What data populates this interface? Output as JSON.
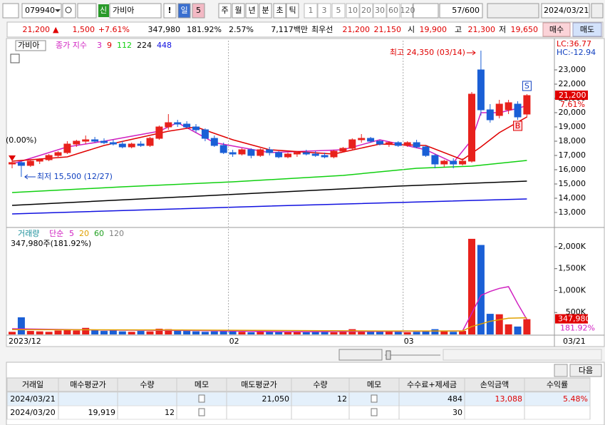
{
  "toolbar": {
    "code": "079940",
    "name_tag": "신",
    "name": "가비아",
    "alert": "!",
    "periods": [
      "일",
      "5",
      "주",
      "월",
      "년",
      "분",
      "초",
      "틱"
    ],
    "intervals": [
      "1",
      "3",
      "5",
      "10",
      "20",
      "30",
      "60",
      "120"
    ],
    "count": "57/600",
    "date": "2024/03/21"
  },
  "quote": {
    "price": "21,200",
    "arrow": "▲",
    "change": "1,500",
    "change_rate": "+7.61%",
    "volume": "347,980",
    "volume_ratio": "181.92%",
    "turnover": "2.57%",
    "amount": "7,117백만",
    "best_label": "최우선",
    "ask": "21,200",
    "bid": "21,150",
    "open_label": "시",
    "open": "19,900",
    "high_label": "고",
    "high": "21,300",
    "low_label": "저",
    "low": "19,650",
    "buy": "매수",
    "sell": "매도"
  },
  "chart_data": [
    {
      "type": "candlestick",
      "title": "가비아",
      "indicator_label": "종가 지수",
      "up_color": "#e8211c",
      "down_color": "#1a5fd6",
      "candles": [
        [
          16400,
          16700,
          16100,
          16500
        ],
        [
          16500,
          16600,
          15500,
          16300
        ],
        [
          16300,
          16700,
          16200,
          16600
        ],
        [
          16600,
          16800,
          16400,
          16700
        ],
        [
          16700,
          17100,
          16600,
          17000
        ],
        [
          17000,
          17300,
          16900,
          17200
        ],
        [
          17200,
          18000,
          17100,
          17800
        ],
        [
          17800,
          18100,
          17600,
          18000
        ],
        [
          18000,
          18400,
          17800,
          18100
        ],
        [
          18100,
          18300,
          17900,
          18000
        ],
        [
          18000,
          18200,
          17800,
          17900
        ],
        [
          17900,
          18100,
          17700,
          17800
        ],
        [
          17800,
          18000,
          17500,
          17600
        ],
        [
          17600,
          17900,
          17500,
          17800
        ],
        [
          17800,
          18000,
          17600,
          17700
        ],
        [
          17700,
          18300,
          17600,
          18200
        ],
        [
          18200,
          19100,
          18100,
          19000
        ],
        [
          19000,
          19900,
          18800,
          19300
        ],
        [
          19300,
          19500,
          19000,
          19200
        ],
        [
          19200,
          19400,
          18900,
          19000
        ],
        [
          19000,
          19200,
          18600,
          18800
        ],
        [
          18800,
          18900,
          18000,
          18200
        ],
        [
          18200,
          18400,
          17600,
          17700
        ],
        [
          17700,
          17900,
          17100,
          17200
        ],
        [
          17200,
          17400,
          16900,
          17100
        ],
        [
          17100,
          17500,
          17000,
          17400
        ],
        [
          17400,
          17500,
          16800,
          17000
        ],
        [
          17000,
          17500,
          16900,
          17400
        ],
        [
          17400,
          17600,
          17000,
          17200
        ],
        [
          17200,
          17300,
          16800,
          16900
        ],
        [
          16900,
          17200,
          16800,
          17100
        ],
        [
          17100,
          17300,
          16900,
          17200
        ],
        [
          17200,
          17400,
          17000,
          17100
        ],
        [
          17100,
          17300,
          16900,
          17000
        ],
        [
          17000,
          17200,
          16800,
          16900
        ],
        [
          16900,
          17400,
          16800,
          17300
        ],
        [
          17300,
          17600,
          17200,
          17500
        ],
        [
          17500,
          18200,
          17400,
          18100
        ],
        [
          18100,
          18500,
          17900,
          18200
        ],
        [
          18200,
          18300,
          17900,
          18000
        ],
        [
          18000,
          18100,
          17700,
          17800
        ],
        [
          17800,
          18000,
          17600,
          17900
        ],
        [
          17900,
          18000,
          17600,
          17700
        ],
        [
          17700,
          18000,
          17600,
          17900
        ],
        [
          17900,
          18100,
          17500,
          17600
        ],
        [
          17600,
          17700,
          16900,
          17000
        ],
        [
          17000,
          17100,
          16100,
          16400
        ],
        [
          16400,
          16700,
          16200,
          16600
        ],
        [
          16600,
          16800,
          16100,
          16400
        ],
        [
          16400,
          16800,
          16300,
          16600
        ],
        [
          16600,
          21450,
          16500,
          21300
        ],
        [
          23000,
          24350,
          19800,
          20200
        ],
        [
          20200,
          20600,
          19300,
          19500
        ],
        [
          19800,
          20900,
          19600,
          20600
        ],
        [
          20200,
          20900,
          19900,
          20700
        ],
        [
          20600,
          20800,
          19500,
          19700
        ],
        [
          19900,
          21300,
          19650,
          21200
        ]
      ],
      "series": [
        {
          "name": "3",
          "color": "#d020c0",
          "x": [
            0,
            6,
            10,
            16,
            18,
            22,
            28,
            36,
            40,
            45,
            48,
            50,
            51,
            53,
            55,
            56
          ],
          "values": [
            16400,
            17600,
            18000,
            18700,
            19300,
            17900,
            17200,
            17400,
            18100,
            17400,
            16500,
            18100,
            20000,
            20000,
            20300,
            20500
          ]
        },
        {
          "name": "9",
          "color": "#e00000",
          "x": [
            0,
            6,
            10,
            17,
            20,
            24,
            28,
            35,
            40,
            45,
            49,
            51,
            53,
            56
          ],
          "values": [
            16600,
            16900,
            17700,
            18700,
            19000,
            18100,
            17400,
            17100,
            17800,
            17700,
            16700,
            17600,
            18600,
            19700
          ]
        },
        {
          "name": "112",
          "color": "#10d010",
          "x": [
            0,
            12,
            24,
            36,
            44,
            50,
            56
          ],
          "values": [
            14400,
            14800,
            15150,
            15600,
            16100,
            16250,
            16650
          ]
        },
        {
          "name": "224",
          "color": "#000000",
          "x": [
            0,
            14,
            28,
            42,
            56
          ],
          "values": [
            13500,
            13950,
            14400,
            14850,
            15200
          ]
        },
        {
          "name": "448",
          "color": "#1010e0",
          "x": [
            0,
            28,
            56
          ],
          "values": [
            12900,
            13450,
            13950
          ]
        }
      ],
      "ylim": [
        12000,
        25050
      ],
      "yticks": [
        {
          "value": 13000,
          "label": "13,000"
        },
        {
          "value": 14000,
          "label": "14,000"
        },
        {
          "value": 15000,
          "label": "15,000"
        },
        {
          "value": 16000,
          "label": "16,000"
        },
        {
          "value": 17000,
          "label": "17,000"
        },
        {
          "value": 18000,
          "label": "18,000"
        },
        {
          "value": 19000,
          "label": "19,000"
        },
        {
          "value": 20000,
          "label": "20,000"
        },
        {
          "value": 21000,
          "label": "21,000"
        },
        {
          "value": 22000,
          "label": "22,000"
        },
        {
          "value": 23000,
          "label": "23,000"
        }
      ],
      "high_label": "최고 24,350 (03/14)",
      "low_label": "최저 15,500 (12/27)",
      "start_label": "(0.00%)",
      "lc_label": "LC:36.77",
      "hc_label": "HC:-12.94",
      "last_label": "21,200",
      "last_change": "7.61%",
      "sell_marker": "S",
      "buy_marker": "B"
    },
    {
      "type": "bar",
      "title": "거래량",
      "ma_type": "단순",
      "up_color": "#e8211c",
      "down_color": "#1a5fd6",
      "values": [
        60,
        390,
        80,
        70,
        60,
        90,
        110,
        90,
        150,
        100,
        80,
        90,
        70,
        60,
        80,
        70,
        130,
        120,
        100,
        80,
        70,
        60,
        70,
        90,
        70,
        60,
        50,
        60,
        70,
        60,
        50,
        60,
        50,
        60,
        70,
        50,
        60,
        120,
        90,
        70,
        60,
        70,
        60,
        50,
        60,
        80,
        120,
        90,
        60,
        80,
        2180,
        2040,
        470,
        460,
        230,
        180,
        347.98
      ],
      "categories": [
        "2023/12",
        null,
        null,
        null,
        null,
        null,
        null,
        null,
        null,
        null,
        null,
        null,
        null,
        null,
        null,
        null,
        null,
        null,
        null,
        null,
        null,
        null,
        null,
        null,
        "02",
        null,
        null,
        null,
        null,
        null,
        null,
        null,
        null,
        null,
        null,
        null,
        null,
        null,
        null,
        null,
        null,
        null,
        null,
        "03",
        null,
        null,
        null,
        null,
        null,
        null,
        null,
        null,
        null,
        null,
        null,
        null,
        "03/21"
      ],
      "series": [
        {
          "name": "5",
          "color": "#d020c0",
          "x": [
            0,
            10,
            20,
            30,
            40,
            49,
            50,
            51,
            52,
            53,
            54,
            55,
            56
          ],
          "values": [
            130,
            100,
            90,
            60,
            70,
            80,
            480,
            890,
            980,
            1050,
            1090,
            700,
            340
          ]
        },
        {
          "name": "20",
          "color": "#e0a000",
          "x": [
            0,
            20,
            40,
            49,
            50,
            52,
            54,
            56
          ],
          "values": [
            110,
            100,
            80,
            80,
            180,
            300,
            370,
            380
          ]
        },
        {
          "name": "60",
          "color": "#20a020"
        },
        {
          "name": "120",
          "color": "#808080"
        }
      ],
      "ylim": [
        0,
        2390
      ],
      "yticks": [
        {
          "value": 500,
          "label": "500K"
        },
        {
          "value": 1000,
          "label": "1,000K"
        },
        {
          "value": 1500,
          "label": "1,500K"
        },
        {
          "value": 2000,
          "label": "2,000K"
        }
      ],
      "current_label": "347,980주(181.92%)",
      "axis_value_label": "347,980",
      "axis_ratio_label": "181.92%"
    }
  ],
  "table": {
    "next": "다음",
    "header": [
      "거래일",
      "매수평균가",
      "수량",
      "메모",
      "매도평균가",
      "수량",
      "메모",
      "수수료+제세금",
      "손익금액",
      "수익률"
    ],
    "rows": [
      [
        "2024/03/21",
        null,
        null,
        null,
        "21,050",
        "12",
        null,
        "484",
        "13,088",
        "5.48%"
      ],
      [
        "2024/03/20",
        "19,919",
        "12",
        null,
        null,
        null,
        null,
        "30",
        null,
        null
      ]
    ]
  }
}
